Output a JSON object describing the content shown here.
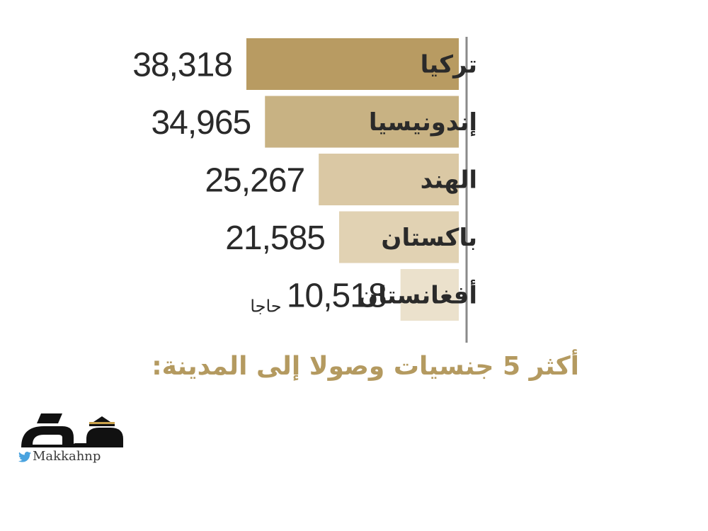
{
  "chart_data": {
    "type": "bar",
    "orientation": "horizontal",
    "categories": [
      "تركيا",
      "إندونيسيا",
      "الهند",
      "باكستان",
      "أفغانستان"
    ],
    "values": [
      38318,
      34965,
      25267,
      21585,
      10518
    ],
    "value_labels": [
      "38,318",
      "34,965",
      "25,267",
      "21,585",
      "10,518"
    ],
    "unit_label": "حاجا",
    "title": "أكثر 5 جنسيات وصولا إلى المدينة:",
    "bar_colors": [
      "#b89b62",
      "#c8b283",
      "#dac8a4",
      "#e1d2b3",
      "#ebe1cc"
    ],
    "axis_color": "#8a8a8a",
    "title_color": "#b49a60",
    "xlim": [
      0,
      40000
    ],
    "bar_direction": "grows-leftward-from-right-axis"
  },
  "branding": {
    "handle": "Makkahnp",
    "handle_icon": "twitter-bird-icon",
    "logo_icon": "makkah-logo-icon",
    "logo_color": "#111111"
  }
}
